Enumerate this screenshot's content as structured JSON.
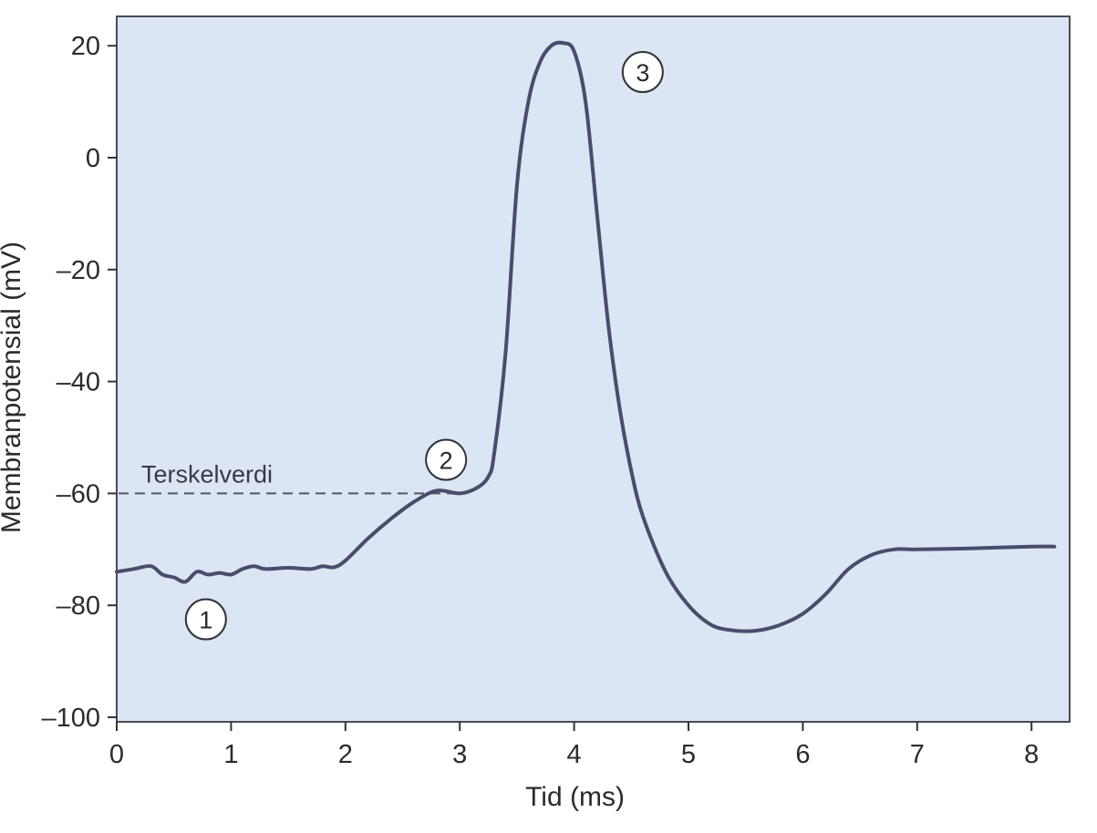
{
  "chart_data": {
    "type": "line",
    "xlabel": "Tid (ms)",
    "ylabel": "Membranpotensial (mV)",
    "xlim": [
      0,
      8.3
    ],
    "ylim": [
      -100,
      25
    ],
    "xticks": [
      0,
      1,
      2,
      3,
      4,
      5,
      6,
      7,
      8
    ],
    "yticks": [
      20,
      0,
      -20,
      -40,
      -60,
      -80,
      -100
    ],
    "ytick_labels": [
      "20",
      "0",
      "–20",
      "–40",
      "–60",
      "–80",
      "–100"
    ],
    "grid": false,
    "background_color": "#dbe5f4",
    "line_color": "#4a4c6c",
    "series": [
      {
        "x": [
          0,
          0.15,
          0.3,
          0.4,
          0.5,
          0.6,
          0.7,
          0.8,
          0.9,
          1.0,
          1.1,
          1.2,
          1.3,
          1.5,
          1.7,
          1.8,
          1.9,
          2.0,
          2.2,
          2.4,
          2.6,
          2.8,
          3.0,
          3.15,
          3.25,
          3.3,
          3.4,
          3.5,
          3.6,
          3.7,
          3.8,
          3.9,
          4.0,
          4.1,
          4.2,
          4.3,
          4.4,
          4.5,
          4.6,
          4.8,
          5.0,
          5.2,
          5.4,
          5.6,
          5.8,
          6.0,
          6.2,
          6.4,
          6.6,
          6.8,
          7.0,
          7.5,
          8.0,
          8.2
        ],
        "y": [
          -74,
          -73.5,
          -73,
          -74.5,
          -75,
          -75.8,
          -74,
          -74.5,
          -74.2,
          -74.5,
          -73.5,
          -73,
          -73.5,
          -73.3,
          -73.5,
          -73,
          -73.2,
          -72,
          -68,
          -64.5,
          -61.5,
          -59.5,
          -60,
          -59,
          -57,
          -53,
          -35,
          -5,
          10,
          17,
          20,
          20.5,
          19,
          10,
          -10,
          -30,
          -45,
          -56,
          -64,
          -74,
          -80,
          -83.5,
          -84.5,
          -84.5,
          -83.5,
          -81.5,
          -78,
          -73.5,
          -71,
          -70,
          -70,
          -69.8,
          -69.5,
          -69.5
        ]
      }
    ],
    "threshold": {
      "label": "Terskelverdi",
      "value": -60,
      "x_end": 3.0
    },
    "markers": [
      {
        "label": "1",
        "x": 0.78,
        "y": -82.5
      },
      {
        "label": "2",
        "x": 2.88,
        "y": -54
      },
      {
        "label": "3",
        "x": 4.6,
        "y": 15.3
      }
    ]
  }
}
